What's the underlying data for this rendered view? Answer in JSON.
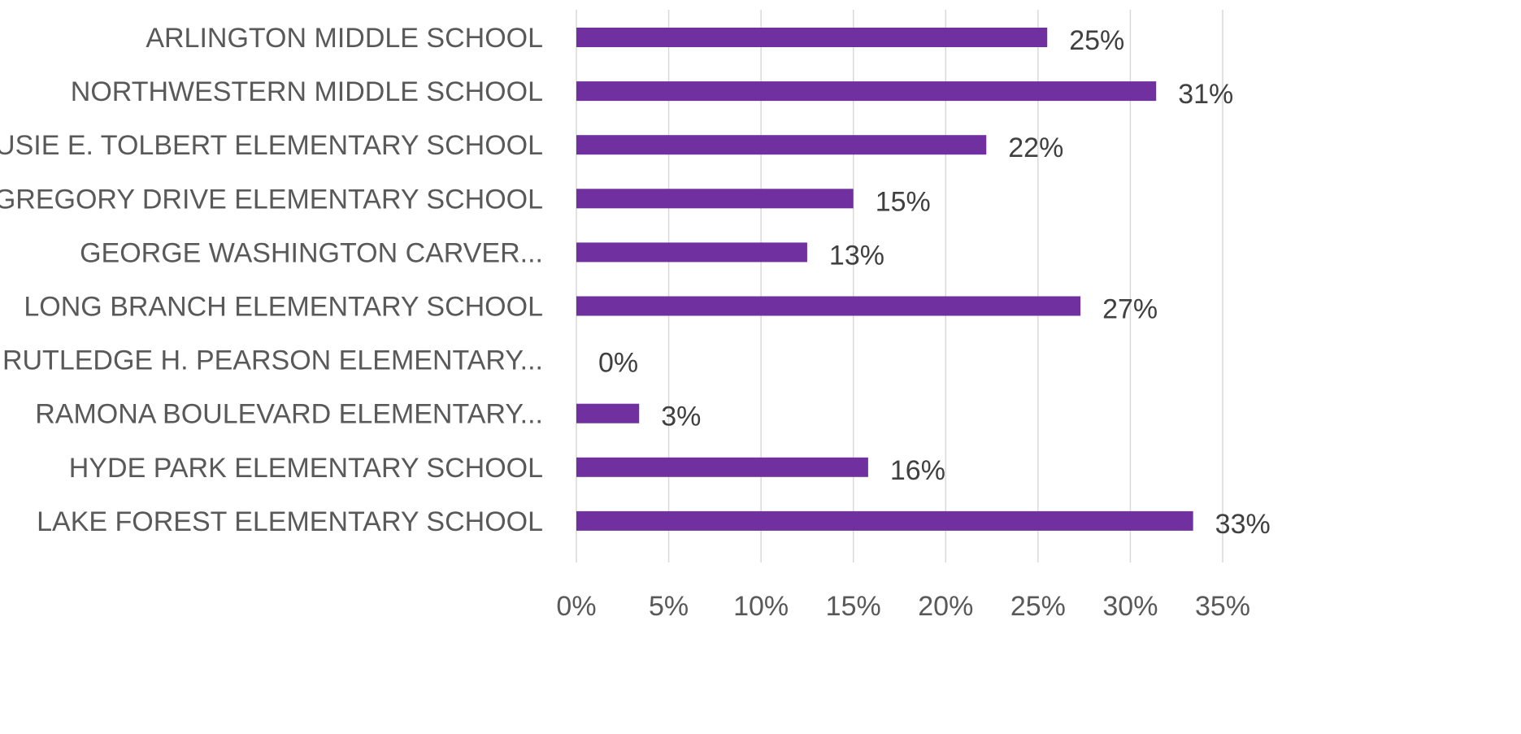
{
  "chart_data": {
    "type": "bar",
    "orientation": "horizontal",
    "categories": [
      "ARLINGTON MIDDLE SCHOOL",
      "NORTHWESTERN MIDDLE SCHOOL",
      "SUSIE E. TOLBERT ELEMENTARY SCHOOL",
      "GREGORY DRIVE ELEMENTARY SCHOOL",
      "GEORGE WASHINGTON CARVER...",
      "LONG BRANCH ELEMENTARY SCHOOL",
      "RUTLEDGE H. PEARSON ELEMENTARY...",
      "RAMONA BOULEVARD ELEMENTARY...",
      "HYDE PARK ELEMENTARY SCHOOL",
      "LAKE FOREST ELEMENTARY SCHOOL"
    ],
    "values": [
      25.5,
      31.4,
      22.2,
      15.0,
      12.5,
      27.3,
      0,
      3.4,
      15.8,
      33.4
    ],
    "data_labels": [
      "25%",
      "31%",
      "22%",
      "15%",
      "13%",
      "27%",
      "0%",
      "3%",
      "16%",
      "33%"
    ],
    "xlim": [
      0,
      35
    ],
    "x_ticks": [
      0,
      5,
      10,
      15,
      20,
      25,
      30,
      35
    ],
    "x_tick_labels": [
      "0%",
      "5%",
      "10%",
      "15%",
      "20%",
      "25%",
      "30%",
      "35%"
    ],
    "title": "",
    "xlabel": "",
    "ylabel": "",
    "grid": "vertical",
    "legend": "none",
    "bar_color": "#7030a0"
  }
}
